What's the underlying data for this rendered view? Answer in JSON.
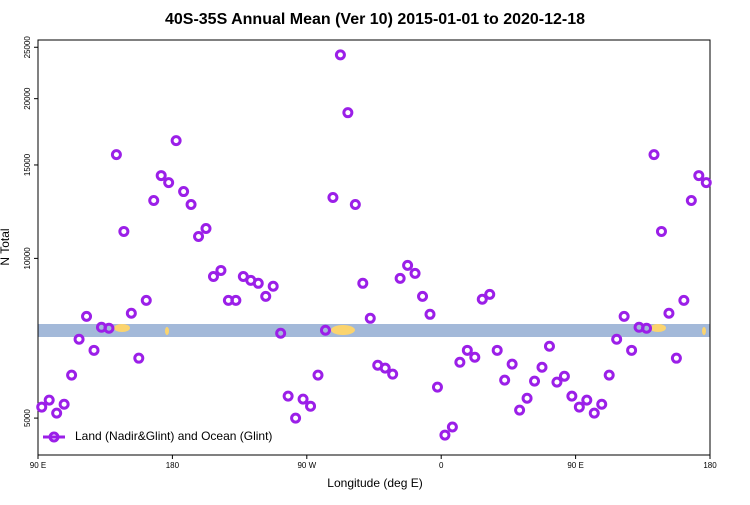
{
  "chart_data": {
    "type": "scatter",
    "title": "40S-35S Annual Mean (Ver 10)   2015-01-01 to 2020-12-18",
    "x_label": "Longitude (deg E)",
    "y_label": "N Total",
    "x": [
      92.5,
      97.5,
      102.5,
      107.5,
      112.5,
      117.5,
      122.5,
      127.5,
      132.5,
      137.5,
      142.5,
      147.5,
      152.5,
      157.5,
      162.5,
      167.5,
      172.5,
      177.5,
      182.5,
      187.5,
      192.5,
      197.5,
      202.5,
      207.5,
      212.5,
      217.5,
      222.5,
      227.5,
      232.5,
      237.5,
      242.5,
      247.5,
      252.5,
      257.5,
      262.5,
      267.5,
      272.5,
      277.5,
      282.5,
      287.5,
      292.5,
      297.5,
      302.5,
      307.5,
      312.5,
      317.5,
      322.5,
      327.5,
      332.5,
      337.5,
      342.5,
      347.5,
      352.5,
      357.5,
      362.5,
      367.5,
      372.5,
      377.5,
      382.5,
      387.5,
      392.5,
      397.5,
      402.5,
      407.5,
      412.5,
      417.5,
      422.5,
      427.5,
      432.5,
      437.5,
      442.5,
      447.5,
      452.5,
      457.5,
      462.5,
      467.5,
      472.5,
      477.5,
      482.5,
      487.5,
      492.5,
      497.5,
      502.5,
      507.5,
      512.5,
      517.5,
      522.5,
      527.5,
      532.5,
      537.5
    ],
    "series": [
      {
        "name": "Land (Nadir&Glint) and Ocean (Glint)",
        "color": "#9b1fe8",
        "values": [
          5245,
          5405,
          5110,
          5310,
          6025,
          7040,
          7775,
          6710,
          7415,
          7385,
          15690,
          11240,
          7880,
          6485,
          8335,
          12855,
          14325,
          13895,
          16670,
          13365,
          12635,
          10995,
          11385,
          9245,
          9490,
          8335,
          8335,
          9245,
          9090,
          8975,
          8480,
          8860,
          7225,
          5500,
          5000,
          5430,
          5265,
          6025,
          7320,
          13025,
          24190,
          18820,
          12635,
          8975,
          7710,
          6290,
          6210,
          6050,
          9170,
          9700,
          9370,
          8480,
          7845,
          5720,
          4645,
          4810,
          6370,
          6710,
          6510,
          8375,
          8555,
          6710,
          5895,
          6320,
          5175,
          5450,
          5870,
          6235,
          6830,
          5845,
          5995,
          5500,
          5245,
          5405,
          5110,
          5310,
          6025,
          7040,
          7775,
          6710,
          7415,
          7385,
          15690,
          11240,
          7880,
          6485,
          8335,
          12855,
          14325,
          13895
        ]
      }
    ],
    "xlim": [
      90,
      540
    ],
    "xticks": [
      {
        "value": 90,
        "label": "90 E"
      },
      180,
      {
        "value": 270,
        "label": "90 W"
      },
      {
        "value": 360,
        "label": "0"
      },
      {
        "value": 450,
        "label": "90 E"
      },
      {
        "value": 540,
        "label": "180"
      }
    ],
    "ylim": [
      4260,
      25800
    ],
    "yticks": [
      5000,
      10000,
      15000,
      20000,
      25000
    ],
    "y_scale": "log",
    "legend": "bottom-left"
  }
}
